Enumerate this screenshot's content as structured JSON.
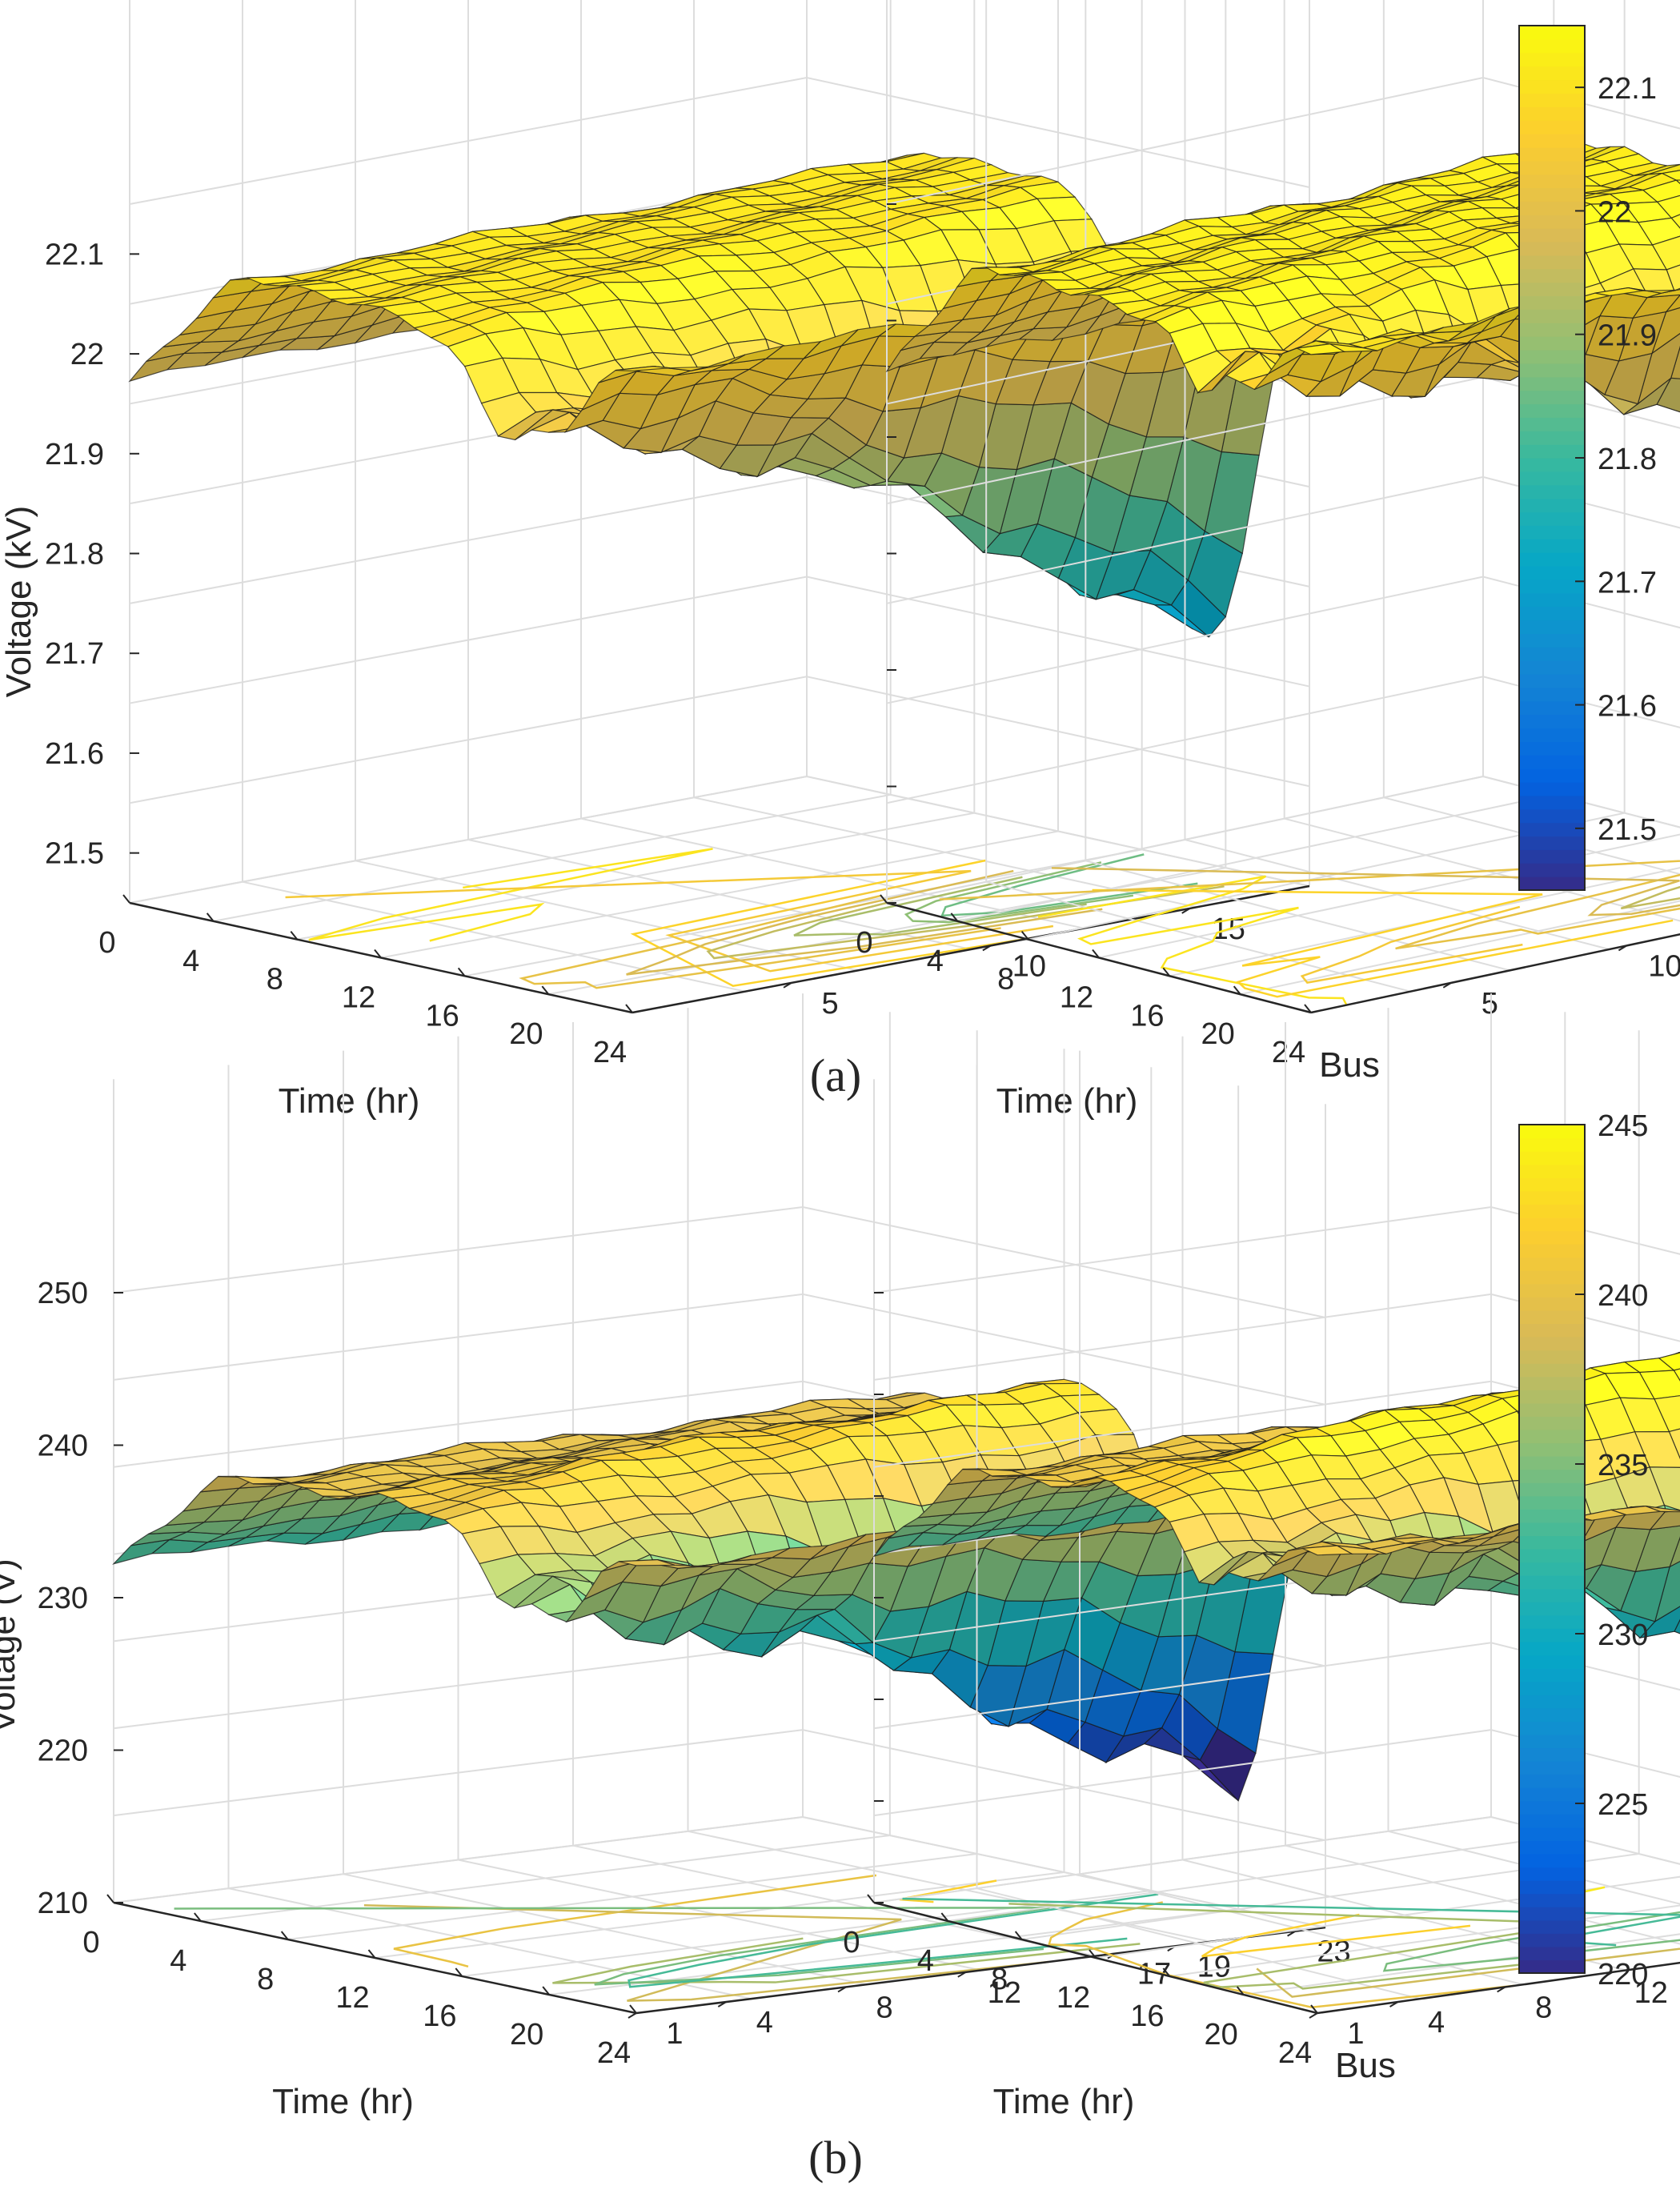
{
  "colors": {
    "parula": [
      "#352a87",
      "#0363e1",
      "#1485d4",
      "#06a7c6",
      "#38b99e",
      "#92bf73",
      "#d9ba56",
      "#fcce2e",
      "#f9fb0e"
    ],
    "grid": "#dddddd",
    "axis": "#262626",
    "edge": "#1a1a1a"
  },
  "chart_data": [
    {
      "id": "a-left",
      "type": "surface",
      "panel": "a",
      "xlabel": "Time (hr)",
      "ylabel": "Bus",
      "zlabel": "Voltage (kV)",
      "x_ticks": [
        "0",
        "4",
        "8",
        "12",
        "16",
        "20",
        "24"
      ],
      "y_ticks": [
        "5",
        "10",
        "15"
      ],
      "z_ticks": [
        "21.5",
        "21.6",
        "21.7",
        "21.8",
        "21.9",
        "22",
        "22.1"
      ],
      "xlim": [
        0,
        24
      ],
      "ylim": [
        1,
        18
      ],
      "zlim": [
        21.45,
        22.15
      ],
      "clim": [
        21.45,
        22.15
      ],
      "contour_floor": true,
      "profile": {
        "z_max": 22.1,
        "dip_depth": 0.39,
        "dip_center_hr": 19,
        "dip_width_hr": 3.2,
        "bus_gain": 0.85,
        "ripple": 0.02
      }
    },
    {
      "id": "a-right",
      "type": "surface",
      "panel": "a",
      "xlabel": "Time (hr)",
      "ylabel": "Bus",
      "zlabel": "",
      "x_ticks": [
        "0",
        "4",
        "8",
        "12",
        "16",
        "20",
        "24"
      ],
      "y_ticks": [
        "5",
        "10",
        "15"
      ],
      "z_ticks": [],
      "xlim": [
        0,
        24
      ],
      "ylim": [
        1,
        18
      ],
      "zlim": [
        21.45,
        22.15
      ],
      "clim": [
        21.45,
        22.15
      ],
      "contour_floor": true,
      "profile": {
        "z_max": 22.11,
        "dip_depth": 0.22,
        "dip_center_hr": 19,
        "dip_width_hr": 2.8,
        "bus_gain": 0.75,
        "ripple": 0.025
      }
    },
    {
      "id": "b-left",
      "type": "surface",
      "panel": "b",
      "xlabel": "Time (hr)",
      "ylabel": "Bus",
      "zlabel": "Voltage (V)",
      "x_ticks": [
        "0",
        "4",
        "8",
        "12",
        "16",
        "20",
        "24"
      ],
      "y_ticks": [
        "1",
        "4",
        "8",
        "12",
        "17",
        "19",
        "23"
      ],
      "z_ticks": [
        "210",
        "220",
        "230",
        "240",
        "250"
      ],
      "xlim": [
        0,
        24
      ],
      "ylim": [
        1,
        24
      ],
      "zlim": [
        210,
        250
      ],
      "clim": [
        220,
        245
      ],
      "contour_floor": true,
      "profile": {
        "z_max": 239.5,
        "noon_bump": 3.2,
        "dip_depth": 19.5,
        "dip_center_hr": 19.5,
        "dip_width_hr": 2.6,
        "bus_gain": 0.9,
        "ripple": 1.6
      }
    },
    {
      "id": "b-right",
      "type": "surface",
      "panel": "b",
      "xlabel": "Time (hr)",
      "ylabel": "Bus",
      "zlabel": "",
      "x_ticks": [
        "0",
        "4",
        "8",
        "12",
        "16",
        "20",
        "24"
      ],
      "y_ticks": [
        "1",
        "4",
        "8",
        "12",
        "17",
        "19",
        "23"
      ],
      "z_ticks": [],
      "xlim": [
        0,
        24
      ],
      "ylim": [
        1,
        24
      ],
      "zlim": [
        210,
        250
      ],
      "clim": [
        220,
        245
      ],
      "contour_floor": true,
      "profile": {
        "z_max": 240,
        "noon_bump": 5.2,
        "dip_depth": 13,
        "dip_center_hr": 19,
        "dip_width_hr": 2.4,
        "bus_gain": 0.85,
        "ripple": 1.5
      }
    }
  ],
  "colorbars": [
    {
      "id": "a",
      "clim": [
        21.45,
        22.15
      ],
      "ticks": [
        "21.5",
        "21.6",
        "21.7",
        "21.8",
        "21.9",
        "22",
        "22.1"
      ]
    },
    {
      "id": "b",
      "clim": [
        220,
        245
      ],
      "ticks": [
        "220",
        "225",
        "230",
        "235",
        "240",
        "245"
      ]
    }
  ],
  "captions": {
    "a": "(a)",
    "b": "(b)"
  }
}
